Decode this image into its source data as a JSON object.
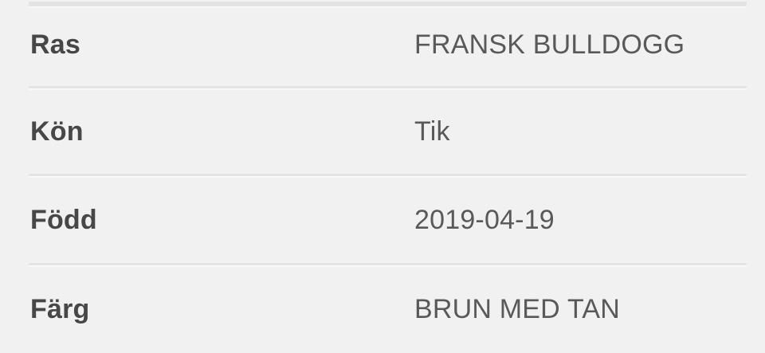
{
  "colors": {
    "background": "#f1f1f2",
    "label_text": "#474747",
    "value_text": "#59595b",
    "divider": "#e3e3e5"
  },
  "table": {
    "rows": [
      {
        "label": "Ras",
        "value": "FRANSK BULLDOGG"
      },
      {
        "label": "Kön",
        "value": "Tik"
      },
      {
        "label": "Född",
        "value": "2019-04-19"
      },
      {
        "label": "Färg",
        "value": "BRUN MED TAN"
      }
    ]
  }
}
